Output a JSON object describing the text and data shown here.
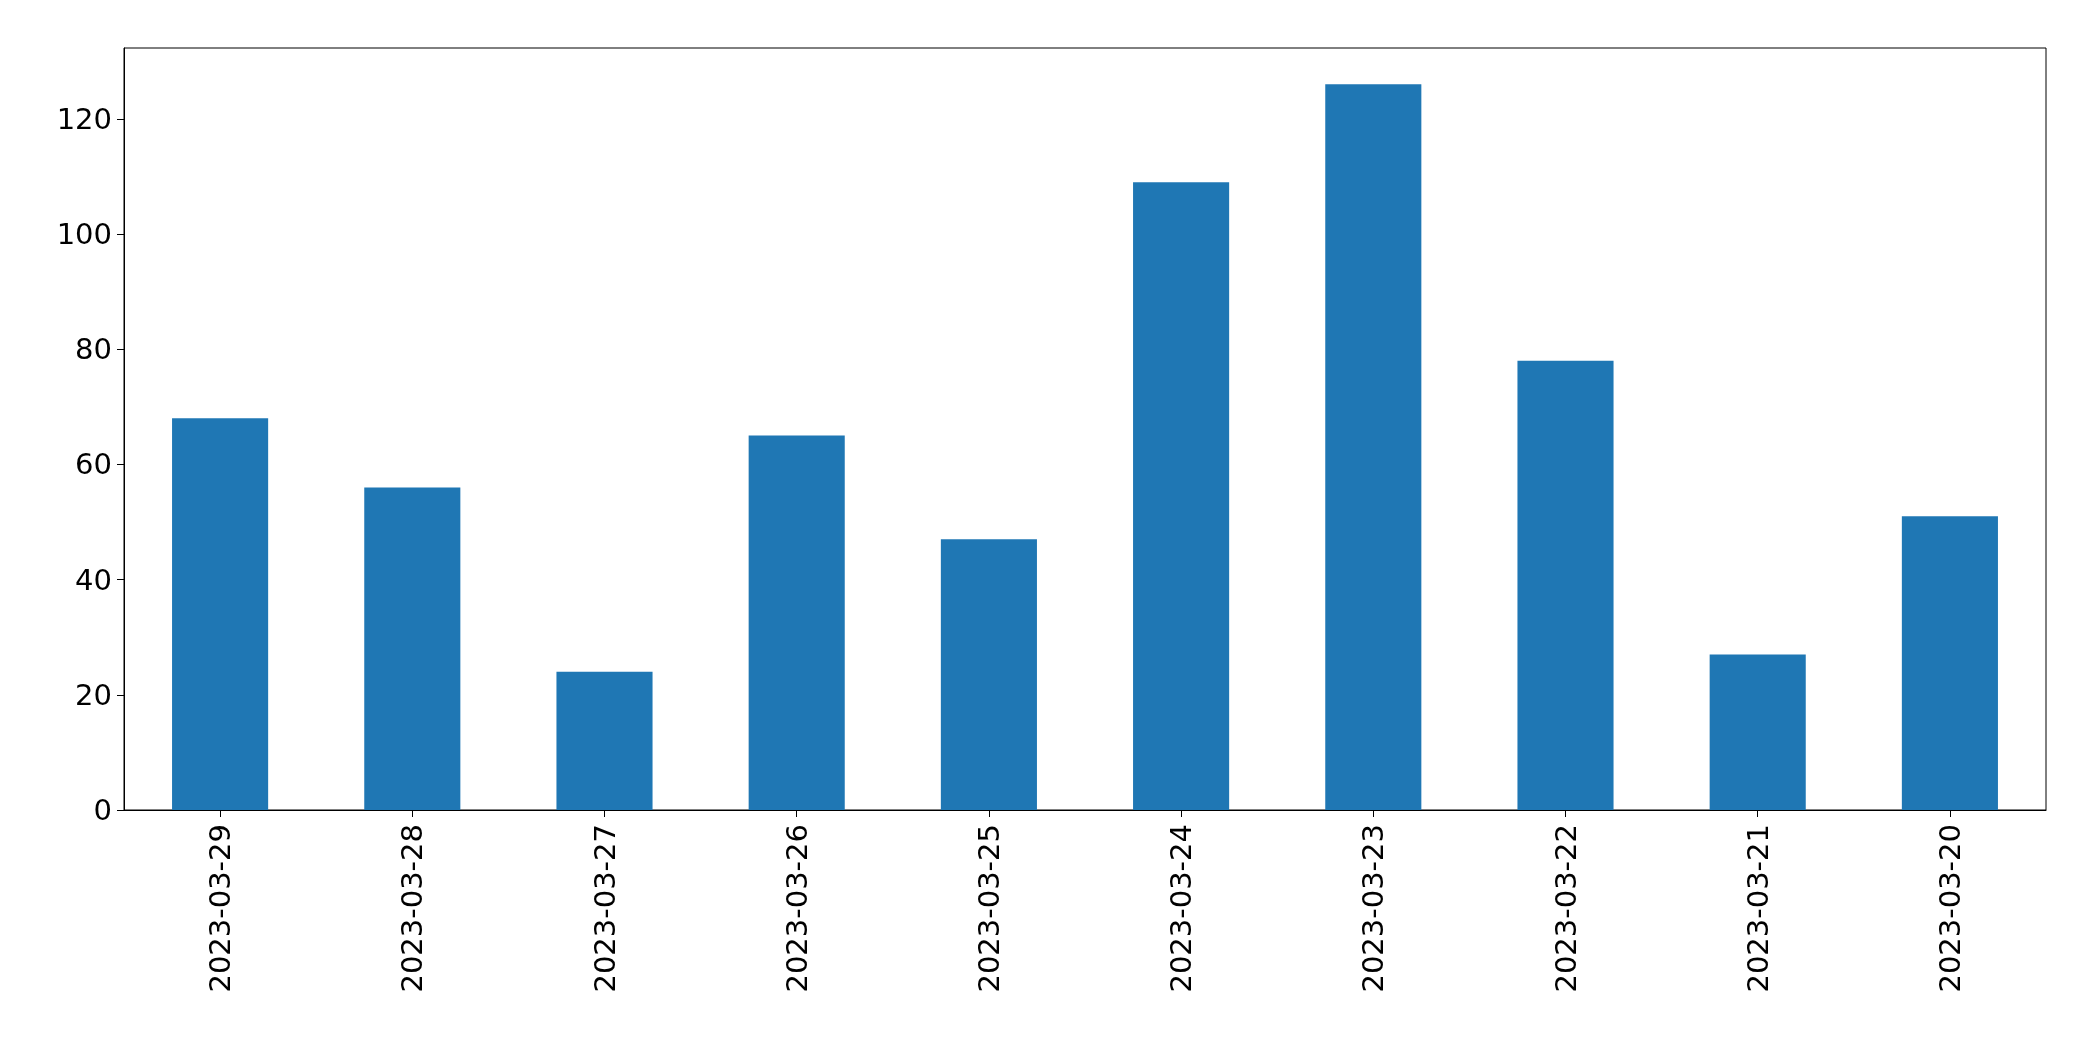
{
  "chart_data": {
    "type": "bar",
    "categories": [
      "2023-03-29",
      "2023-03-28",
      "2023-03-27",
      "2023-03-26",
      "2023-03-25",
      "2023-03-24",
      "2023-03-23",
      "2023-03-22",
      "2023-03-21",
      "2023-03-20"
    ],
    "values": [
      68,
      56,
      24,
      65,
      47,
      109,
      126,
      78,
      27,
      51
    ],
    "color": "#1f77b4",
    "ylim": [
      0,
      132.3
    ],
    "yticks": [
      0,
      20,
      40,
      60,
      80,
      100,
      120
    ],
    "grid": false
  }
}
